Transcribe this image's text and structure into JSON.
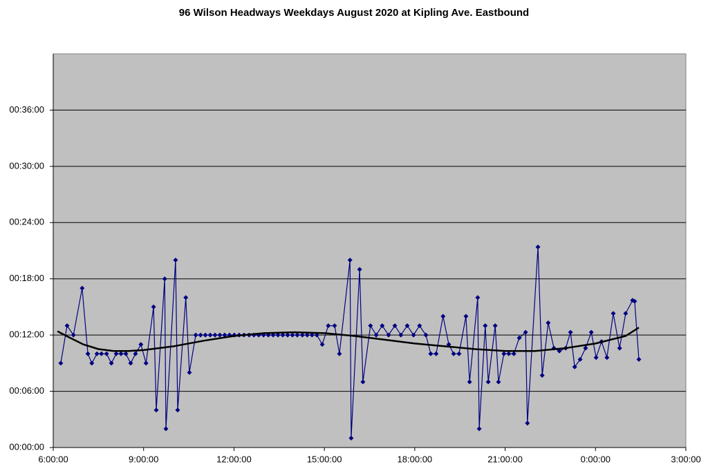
{
  "chart_data": {
    "type": "line",
    "title": "96 Wilson Headways Weekdays August 2020 at Kipling Ave. Eastbound",
    "series": [
      {
        "color": "#000080",
        "marker": "diamond",
        "x": [
          6.25,
          6.46,
          6.67,
          6.96,
          7.15,
          7.28,
          7.45,
          7.6,
          7.77,
          7.93,
          8.09,
          8.25,
          8.41,
          8.57,
          8.73,
          8.91,
          9.08,
          9.33,
          9.42,
          9.7,
          9.74,
          10.06,
          10.13,
          10.4,
          10.52,
          10.73,
          10.89,
          11.05,
          11.21,
          11.37,
          11.53,
          11.69,
          11.85,
          12.01,
          12.17,
          12.33,
          12.5,
          12.66,
          12.82,
          12.98,
          13.14,
          13.3,
          13.46,
          13.62,
          13.78,
          13.94,
          14.1,
          14.27,
          14.43,
          14.59,
          14.75,
          14.93,
          15.13,
          15.34,
          15.5,
          15.85,
          15.89,
          16.17,
          16.28,
          16.53,
          16.72,
          16.92,
          17.13,
          17.34,
          17.54,
          17.75,
          17.96,
          18.16,
          18.37,
          18.53,
          18.71,
          18.94,
          19.13,
          19.29,
          19.47,
          19.7,
          19.82,
          20.09,
          20.14,
          20.34,
          20.44,
          20.67,
          20.78,
          20.96,
          21.12,
          21.29,
          21.47,
          21.68,
          21.74,
          22.09,
          22.23,
          22.43,
          22.62,
          22.8,
          23.01,
          23.17,
          23.31,
          23.49,
          23.67,
          23.86,
          24.02,
          24.2,
          24.38,
          24.59,
          24.8,
          25.0,
          25.23,
          25.3,
          25.44
        ],
        "values": [
          9,
          13,
          12,
          17,
          10,
          9,
          10,
          10,
          10,
          9,
          10,
          10,
          10,
          9,
          10,
          11,
          9,
          15,
          4,
          18,
          2,
          20,
          4,
          16,
          8,
          12,
          12,
          12,
          12,
          12,
          12,
          12,
          12,
          12,
          12,
          12,
          12,
          12,
          12,
          12,
          12,
          12,
          12,
          12,
          12,
          12,
          12,
          12,
          12,
          12,
          12,
          11,
          13,
          13,
          10,
          20,
          1,
          19,
          7,
          13,
          12,
          13,
          12,
          13,
          12,
          13,
          12,
          13,
          12,
          10,
          10,
          14,
          11,
          10,
          10,
          14,
          7,
          16,
          2,
          13,
          7,
          13,
          7,
          10,
          10,
          10,
          11.7,
          12.3,
          2.6,
          21.4,
          7.7,
          13.3,
          10.6,
          10.3,
          10.6,
          12.3,
          8.6,
          9.4,
          10.6,
          12.3,
          9.6,
          11.3,
          9.6,
          14.3,
          10.6,
          14.3,
          15.7,
          15.6,
          9.4
        ]
      },
      {
        "color": "#000000",
        "marker": "none",
        "x": [
          6.14,
          6.5,
          7,
          7.5,
          8,
          8.5,
          9,
          10,
          11,
          12,
          13,
          14,
          15,
          16,
          17,
          18,
          19,
          20,
          21,
          22,
          23,
          24,
          25,
          25.44
        ],
        "values": [
          12.4,
          11.8,
          11,
          10.5,
          10.3,
          10.3,
          10.4,
          10.8,
          11.4,
          11.9,
          12.2,
          12.3,
          12.2,
          11.9,
          11.5,
          11.1,
          10.8,
          10.5,
          10.3,
          10.3,
          10.6,
          11.1,
          11.9,
          12.8
        ]
      }
    ],
    "xlim": [
      6,
      27
    ],
    "xticks": [
      {
        "value": 6,
        "label": "6:00:00"
      },
      {
        "value": 9,
        "label": "9:00:00"
      },
      {
        "value": 12,
        "label": "12:00:00"
      },
      {
        "value": 15,
        "label": "15:00:00"
      },
      {
        "value": 18,
        "label": "18:00:00"
      },
      {
        "value": 21,
        "label": "21:00:00"
      },
      {
        "value": 24,
        "label": "0:00:00"
      },
      {
        "value": 27,
        "label": "3:00:00"
      }
    ],
    "ylim": [
      0,
      42
    ],
    "yticks": [
      {
        "value": 0,
        "label": "00:00:00"
      },
      {
        "value": 6,
        "label": "00:06:00"
      },
      {
        "value": 12,
        "label": "00:12:00"
      },
      {
        "value": 18,
        "label": "00:18:00"
      },
      {
        "value": 24,
        "label": "00:24:00"
      },
      {
        "value": 30,
        "label": "00:30:00"
      },
      {
        "value": 36,
        "label": "00:36:00"
      }
    ],
    "grid": true,
    "plot_background": "#c0c0c0"
  }
}
